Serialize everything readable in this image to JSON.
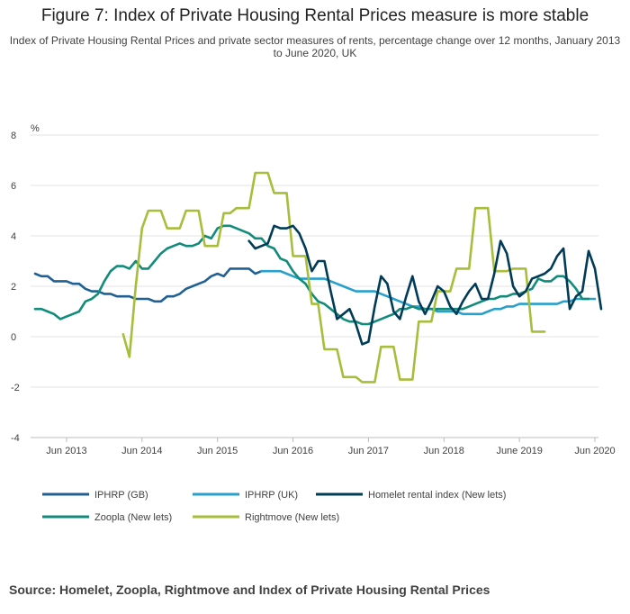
{
  "title": "Figure 7: Index of Private Housing Rental Prices measure is more stable",
  "subtitle": "Index of Private Housing Rental Prices and private sector measures of rents, percentage change over 12 months, January 2013 to June 2020, UK",
  "source": "Source: Homelet, Zoopla, Rightmove and Index of Private Housing Rental Prices",
  "chart_data": {
    "type": "line",
    "title": "Figure 7: Index of Private Housing Rental Prices measure is more stable",
    "ylabel": "%",
    "ylim": [
      -4,
      8
    ],
    "yticks": [
      -4,
      -2,
      0,
      2,
      4,
      6,
      8
    ],
    "x_unit": "months since January 2013",
    "xlim": [
      0,
      89
    ],
    "xticks": [
      {
        "label": "Jun 2013",
        "x": 5
      },
      {
        "label": "Jun 2014",
        "x": 17
      },
      {
        "label": "Jun 2015",
        "x": 29
      },
      {
        "label": "Jun 2016",
        "x": 41
      },
      {
        "label": "Jun 2017",
        "x": 53
      },
      {
        "label": "Jun 2018",
        "x": 65
      },
      {
        "label": "June 2019",
        "x": 77
      },
      {
        "label": "Jun 2020",
        "x": 89
      }
    ],
    "series": [
      {
        "name": "IPHRP (GB)",
        "color": "#206095",
        "start": 0,
        "values": [
          2.5,
          2.4,
          2.4,
          2.2,
          2.2,
          2.2,
          2.1,
          2.1,
          1.9,
          1.8,
          1.8,
          1.7,
          1.7,
          1.6,
          1.6,
          1.6,
          1.5,
          1.5,
          1.5,
          1.4,
          1.4,
          1.6,
          1.6,
          1.7,
          1.9,
          2.0,
          2.1,
          2.2,
          2.4,
          2.5,
          2.4,
          2.7,
          2.7,
          2.7,
          2.7,
          2.5,
          2.6
        ]
      },
      {
        "name": "IPHRP (UK)",
        "color": "#27a0cc",
        "start": 36,
        "values": [
          2.6,
          2.6,
          2.6,
          2.6,
          2.5,
          2.4,
          2.3,
          2.3,
          2.3,
          2.3,
          2.3,
          2.2,
          2.1,
          2.0,
          1.9,
          1.8,
          1.8,
          1.8,
          1.8,
          1.7,
          1.6,
          1.5,
          1.4,
          1.3,
          1.2,
          1.2,
          1.1,
          1.1,
          1.0,
          1.0,
          1.0,
          1.0,
          0.9,
          0.9,
          0.9,
          0.9,
          1.0,
          1.1,
          1.1,
          1.2,
          1.2,
          1.3,
          1.3,
          1.3,
          1.3,
          1.3,
          1.3,
          1.3,
          1.4,
          1.4,
          1.5,
          1.5,
          1.5,
          1.5
        ]
      },
      {
        "name": "Homelet rental index (New lets)",
        "color": "#003c57",
        "start": 34,
        "values": [
          3.8,
          3.5,
          3.6,
          3.7,
          4.4,
          4.3,
          4.3,
          4.4,
          4.1,
          3.5,
          2.6,
          3.0,
          3.0,
          1.8,
          0.7,
          0.9,
          1.1,
          0.5,
          -0.3,
          -0.2,
          1.2,
          2.4,
          2.1,
          1.0,
          0.7,
          1.6,
          2.4,
          1.4,
          0.9,
          1.4,
          2.0,
          1.8,
          1.2,
          0.9,
          1.4,
          1.8,
          2.1,
          1.5,
          1.5,
          2.5,
          3.8,
          3.3,
          2.0,
          1.6,
          1.8,
          2.3,
          2.4,
          2.5,
          2.7,
          3.2,
          3.5,
          1.1,
          1.6,
          1.8,
          3.4,
          2.7,
          1.1
        ]
      },
      {
        "name": "Zoopla (New lets)",
        "color": "#118c7b",
        "start": 0,
        "values": [
          1.1,
          1.1,
          1.0,
          0.9,
          0.7,
          0.8,
          0.9,
          1.0,
          1.4,
          1.5,
          1.7,
          2.2,
          2.6,
          2.8,
          2.8,
          2.7,
          3.0,
          2.7,
          2.7,
          3.0,
          3.3,
          3.5,
          3.6,
          3.7,
          3.6,
          3.6,
          3.7,
          4.0,
          3.9,
          4.3,
          4.4,
          4.4,
          4.3,
          4.2,
          4.1,
          3.9,
          3.9,
          3.6,
          3.5,
          3.1,
          3.0,
          2.6,
          2.3,
          2.1,
          1.7,
          1.4,
          1.3,
          1.1,
          0.9,
          0.7,
          0.6,
          0.6,
          0.5,
          0.5,
          0.6,
          0.7,
          0.8,
          0.9,
          1.1,
          1.1,
          1.2,
          1.1,
          1.1,
          1.1,
          1.1,
          1.1,
          1.1,
          1.1,
          1.1,
          1.2,
          1.3,
          1.4,
          1.5,
          1.5,
          1.6,
          1.6,
          1.7,
          1.7,
          1.8,
          1.9,
          2.3,
          2.2,
          2.2,
          2.4,
          2.4,
          2.2,
          1.9,
          1.5,
          1.5
        ]
      },
      {
        "name": "Rightmove (New lets)",
        "color": "#a8bd3a",
        "start": 14,
        "values": [
          0.1,
          -0.8,
          2.0,
          4.3,
          5.0,
          5.0,
          5.0,
          4.3,
          4.3,
          4.3,
          5.0,
          5.0,
          5.0,
          3.6,
          3.6,
          3.6,
          4.9,
          4.9,
          5.1,
          5.1,
          5.1,
          6.5,
          6.5,
          6.5,
          5.7,
          5.7,
          5.7,
          3.2,
          3.2,
          3.2,
          1.3,
          1.3,
          -0.5,
          -0.5,
          -0.5,
          -1.6,
          -1.6,
          -1.6,
          -1.8,
          -1.8,
          -1.8,
          -0.4,
          -0.4,
          -0.4,
          -1.7,
          -1.7,
          -1.7,
          0.6,
          0.6,
          0.6,
          1.8,
          1.8,
          1.8,
          2.7,
          2.7,
          2.7,
          5.1,
          5.1,
          5.1,
          2.6,
          2.6,
          2.6,
          2.7,
          2.7,
          2.7,
          0.2,
          0.2,
          0.2
        ]
      }
    ],
    "legend_position": "bottom"
  }
}
